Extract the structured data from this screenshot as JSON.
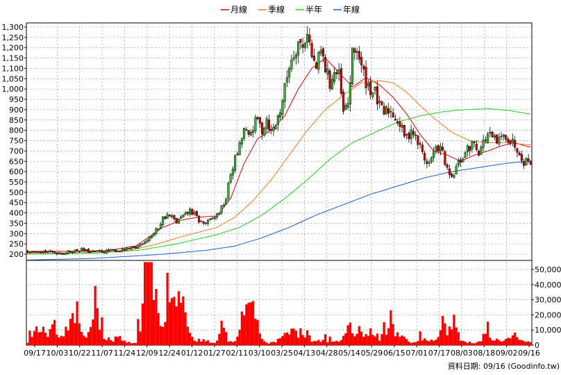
{
  "chart_data": [
    {
      "type": "candlestick",
      "legend": [
        {
          "label": "月線",
          "color": "#e00000"
        },
        {
          "label": "季線",
          "color": "#f07a20"
        },
        {
          "label": "半年",
          "color": "#22cc22"
        },
        {
          "label": "年線",
          "color": "#1a5fd0"
        }
      ],
      "legend_placement": "top-center",
      "up_color": "#33bb33",
      "down_color": "#e00000",
      "y_ticks": [
        200,
        250,
        300,
        350,
        400,
        450,
        500,
        550,
        600,
        650,
        700,
        750,
        800,
        850,
        900,
        950,
        1000,
        1050,
        1100,
        1150,
        1200,
        1250,
        1300
      ],
      "y_tick_labels": [
        "200",
        "250",
        "300",
        "350",
        "400",
        "450",
        "500",
        "550",
        "600",
        "650",
        "700",
        "750",
        "800",
        "850",
        "900",
        "950",
        "1,000",
        "1,050",
        "1,100",
        "1,150",
        "1,200",
        "1,250",
        "1,300"
      ],
      "ylim": [
        170,
        1320
      ],
      "grid": true,
      "price_anchors": [
        [
          0,
          215
        ],
        [
          4,
          220
        ],
        [
          8,
          213
        ],
        [
          12,
          208
        ],
        [
          16,
          205
        ],
        [
          20,
          215
        ],
        [
          24,
          222
        ],
        [
          28,
          210
        ],
        [
          36,
          215
        ],
        [
          44,
          222
        ],
        [
          48,
          232
        ],
        [
          52,
          265
        ],
        [
          56,
          300
        ],
        [
          58,
          330
        ],
        [
          60,
          375
        ],
        [
          62,
          388
        ],
        [
          64,
          378
        ],
        [
          66,
          355
        ],
        [
          68,
          375
        ],
        [
          70,
          390
        ],
        [
          72,
          412
        ],
        [
          74,
          392
        ],
        [
          76,
          362
        ],
        [
          78,
          350
        ],
        [
          80,
          355
        ],
        [
          84,
          390
        ],
        [
          86,
          422
        ],
        [
          88,
          470
        ],
        [
          90,
          590
        ],
        [
          92,
          660
        ],
        [
          94,
          720
        ],
        [
          96,
          805
        ],
        [
          98,
          760
        ],
        [
          100,
          820
        ],
        [
          102,
          850
        ],
        [
          104,
          800
        ],
        [
          106,
          860
        ],
        [
          108,
          790
        ],
        [
          110,
          830
        ],
        [
          112,
          900
        ],
        [
          114,
          1000
        ],
        [
          116,
          1120
        ],
        [
          118,
          1180
        ],
        [
          120,
          1230
        ],
        [
          122,
          1200
        ],
        [
          124,
          1290
        ],
        [
          126,
          1150
        ],
        [
          128,
          1100
        ],
        [
          130,
          1180
        ],
        [
          132,
          1100
        ],
        [
          134,
          1030
        ],
        [
          136,
          1080
        ],
        [
          138,
          1060
        ],
        [
          140,
          880
        ],
        [
          142,
          930
        ],
        [
          144,
          1160
        ],
        [
          146,
          1200
        ],
        [
          148,
          1100
        ],
        [
          150,
          1040
        ],
        [
          152,
          1000
        ],
        [
          154,
          980
        ],
        [
          156,
          910
        ],
        [
          158,
          880
        ],
        [
          160,
          900
        ],
        [
          162,
          880
        ],
        [
          164,
          850
        ],
        [
          166,
          800
        ],
        [
          168,
          760
        ],
        [
          170,
          810
        ],
        [
          172,
          760
        ],
        [
          174,
          720
        ],
        [
          176,
          660
        ],
        [
          178,
          640
        ],
        [
          180,
          690
        ],
        [
          182,
          720
        ],
        [
          184,
          690
        ],
        [
          186,
          600
        ],
        [
          188,
          560
        ],
        [
          190,
          620
        ],
        [
          192,
          655
        ],
        [
          194,
          690
        ],
        [
          196,
          720
        ],
        [
          198,
          740
        ],
        [
          200,
          700
        ],
        [
          202,
          740
        ],
        [
          204,
          780
        ],
        [
          206,
          760
        ],
        [
          208,
          740
        ],
        [
          210,
          760
        ],
        [
          212,
          780
        ],
        [
          214,
          750
        ],
        [
          216,
          730
        ],
        [
          218,
          700
        ],
        [
          220,
          650
        ],
        [
          222,
          655
        ]
      ],
      "ma": [
        {
          "name": "月線",
          "values": [
            [
              0,
              214
            ],
            [
              20,
              214
            ],
            [
              36,
              218
            ],
            [
              48,
              240
            ],
            [
              60,
              330
            ],
            [
              68,
              365
            ],
            [
              76,
              380
            ],
            [
              84,
              385
            ],
            [
              90,
              470
            ],
            [
              96,
              640
            ],
            [
              102,
              760
            ],
            [
              108,
              800
            ],
            [
              114,
              870
            ],
            [
              120,
              1000
            ],
            [
              126,
              1100
            ],
            [
              132,
              1150
            ],
            [
              138,
              1080
            ],
            [
              144,
              1010
            ],
            [
              150,
              1055
            ],
            [
              156,
              1020
            ],
            [
              162,
              960
            ],
            [
              168,
              880
            ],
            [
              174,
              780
            ],
            [
              180,
              700
            ],
            [
              186,
              680
            ],
            [
              192,
              650
            ],
            [
              198,
              680
            ],
            [
              204,
              700
            ],
            [
              210,
              725
            ],
            [
              216,
              740
            ],
            [
              222,
              720
            ]
          ]
        },
        {
          "name": "季線",
          "values": [
            [
              0,
              205
            ],
            [
              24,
              208
            ],
            [
              44,
              216
            ],
            [
              56,
              245
            ],
            [
              70,
              290
            ],
            [
              84,
              330
            ],
            [
              92,
              380
            ],
            [
              100,
              460
            ],
            [
              108,
              560
            ],
            [
              116,
              680
            ],
            [
              124,
              800
            ],
            [
              132,
              900
            ],
            [
              140,
              970
            ],
            [
              148,
              1030
            ],
            [
              156,
              1040
            ],
            [
              162,
              1030
            ],
            [
              168,
              985
            ],
            [
              174,
              920
            ],
            [
              180,
              860
            ],
            [
              188,
              790
            ],
            [
              196,
              750
            ],
            [
              204,
              740
            ],
            [
              212,
              740
            ],
            [
              222,
              730
            ]
          ]
        },
        {
          "name": "半年",
          "values": [
            [
              0,
              200
            ],
            [
              30,
              205
            ],
            [
              50,
              220
            ],
            [
              66,
              250
            ],
            [
              84,
              295
            ],
            [
              94,
              330
            ],
            [
              104,
              390
            ],
            [
              114,
              470
            ],
            [
              124,
              560
            ],
            [
              134,
              660
            ],
            [
              144,
              740
            ],
            [
              154,
              790
            ],
            [
              164,
              840
            ],
            [
              174,
              870
            ],
            [
              184,
              890
            ],
            [
              194,
              900
            ],
            [
              204,
              905
            ],
            [
              214,
              895
            ],
            [
              222,
              880
            ]
          ]
        },
        {
          "name": "年線",
          "values": [
            [
              0,
              172
            ],
            [
              30,
              180
            ],
            [
              60,
              200
            ],
            [
              80,
              220
            ],
            [
              92,
              240
            ],
            [
              104,
              280
            ],
            [
              116,
              330
            ],
            [
              128,
              390
            ],
            [
              140,
              440
            ],
            [
              152,
              490
            ],
            [
              164,
              530
            ],
            [
              176,
              570
            ],
            [
              188,
              600
            ],
            [
              200,
              620
            ],
            [
              212,
              640
            ],
            [
              222,
              650
            ]
          ]
        }
      ]
    },
    {
      "type": "bar",
      "color": "#ff0000",
      "y_ticks": [
        0,
        10000,
        20000,
        30000,
        40000,
        50000
      ],
      "y_tick_labels": [
        "0",
        "10,000",
        "20,000",
        "30,000",
        "40,000",
        "50,000"
      ],
      "ylim": [
        0,
        56000
      ],
      "volume_anchors": [
        [
          0,
          2500
        ],
        [
          2,
          6000
        ],
        [
          4,
          9000
        ],
        [
          6,
          11000
        ],
        [
          8,
          6000
        ],
        [
          10,
          8000
        ],
        [
          12,
          12000
        ],
        [
          14,
          5000
        ],
        [
          16,
          4000
        ],
        [
          18,
          7000
        ],
        [
          20,
          18000
        ],
        [
          22,
          20000
        ],
        [
          24,
          8000
        ],
        [
          26,
          6000
        ],
        [
          28,
          20000
        ],
        [
          30,
          28000
        ],
        [
          32,
          16000
        ],
        [
          34,
          6000
        ],
        [
          36,
          3000
        ],
        [
          38,
          2500
        ],
        [
          40,
          6000
        ],
        [
          42,
          3000
        ],
        [
          44,
          2000
        ],
        [
          46,
          1500
        ],
        [
          48,
          2000
        ],
        [
          50,
          16000
        ],
        [
          52,
          33000
        ],
        [
          54,
          51000
        ],
        [
          56,
          35000
        ],
        [
          58,
          25000
        ],
        [
          60,
          15000
        ],
        [
          62,
          38000
        ],
        [
          64,
          28000
        ],
        [
          66,
          19000
        ],
        [
          68,
          34000
        ],
        [
          70,
          16000
        ],
        [
          72,
          6000
        ],
        [
          74,
          3000
        ],
        [
          76,
          2000
        ],
        [
          78,
          5000
        ],
        [
          80,
          3000
        ],
        [
          82,
          2000
        ],
        [
          84,
          2500
        ],
        [
          86,
          12000
        ],
        [
          88,
          6000
        ],
        [
          90,
          2000
        ],
        [
          92,
          2500
        ],
        [
          94,
          8000
        ],
        [
          96,
          15000
        ],
        [
          98,
          25000
        ],
        [
          100,
          30000
        ],
        [
          102,
          12000
        ],
        [
          104,
          3000
        ],
        [
          106,
          2000
        ],
        [
          108,
          1500
        ],
        [
          110,
          3000
        ],
        [
          112,
          4000
        ],
        [
          114,
          8000
        ],
        [
          116,
          12000
        ],
        [
          118,
          9000
        ],
        [
          120,
          7000
        ],
        [
          122,
          5000
        ],
        [
          124,
          11000
        ],
        [
          126,
          4000
        ],
        [
          128,
          3000
        ],
        [
          130,
          2000
        ],
        [
          132,
          4000
        ],
        [
          134,
          3000
        ],
        [
          136,
          2000
        ],
        [
          138,
          2500
        ],
        [
          140,
          6000
        ],
        [
          142,
          10000
        ],
        [
          144,
          8000
        ],
        [
          146,
          12000
        ],
        [
          148,
          8000
        ],
        [
          150,
          7000
        ],
        [
          152,
          9000
        ],
        [
          154,
          6000
        ],
        [
          156,
          5000
        ],
        [
          158,
          7000
        ],
        [
          160,
          9000
        ],
        [
          162,
          12000
        ],
        [
          164,
          7000
        ],
        [
          166,
          5000
        ],
        [
          168,
          3000
        ],
        [
          170,
          2000
        ],
        [
          172,
          1500
        ],
        [
          174,
          5000
        ],
        [
          176,
          4000
        ],
        [
          178,
          3000
        ],
        [
          180,
          2000
        ],
        [
          182,
          9000
        ],
        [
          184,
          14000
        ],
        [
          186,
          10000
        ],
        [
          188,
          16000
        ],
        [
          190,
          12000
        ],
        [
          192,
          4000
        ],
        [
          194,
          3000
        ],
        [
          196,
          2000
        ],
        [
          198,
          1500
        ],
        [
          200,
          3000
        ],
        [
          202,
          6000
        ],
        [
          204,
          7000
        ],
        [
          206,
          4000
        ],
        [
          208,
          3000
        ],
        [
          210,
          2000
        ],
        [
          212,
          3000
        ],
        [
          214,
          4000
        ],
        [
          216,
          5000
        ],
        [
          218,
          3000
        ],
        [
          220,
          2000
        ],
        [
          222,
          3000
        ]
      ]
    }
  ],
  "x_axis_labels": [
    "09/17",
    "10/03",
    "10/22",
    "11/07",
    "11/24",
    "12/09",
    "12/24",
    "01/12",
    "01/27",
    "02/11",
    "03/10",
    "03/25",
    "04/13",
    "04/28",
    "05/14",
    "05/29",
    "06/15",
    "07/01",
    "07/17",
    "08/03",
    "08/18",
    "09/02",
    "09/16"
  ],
  "footer": "資料日期: 09/16  (Goodinfo.tw)"
}
